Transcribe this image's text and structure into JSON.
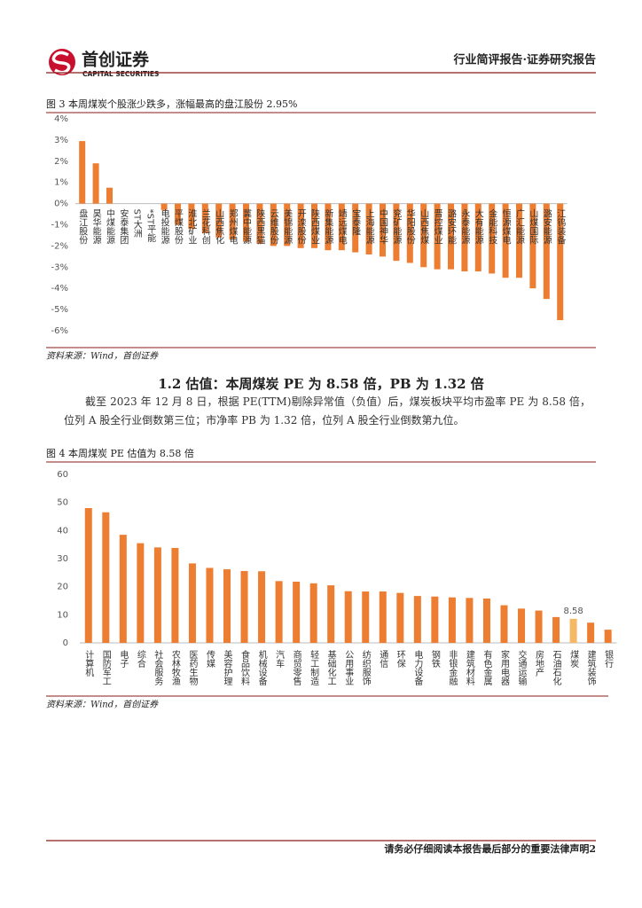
{
  "header": {
    "logo": "首创证券",
    "logo_en": "CAPITAL SECURITIES",
    "title": "行业简评报告·证券研究报告"
  },
  "figure3": {
    "caption": "图 3 本周煤炭个股涨少跌多，涨幅最高的盘江股份 2.95%",
    "source": "资料来源：Wind，首创证券"
  },
  "section": {
    "heading": "1.2 估值：本周煤炭 PE 为 8.58 倍，PB 为 1.32 倍",
    "paragraph": "截至 2023 年 12 月 8 日，根据 PE(TTM)剔除异常值（负值）后，煤炭板块平均市盈率 PE 为 8.58 倍，位列 A 股全行业倒数第三位；市净率 PB 为 1.32 倍，位列 A 股全行业倒数第九位。"
  },
  "figure4": {
    "caption": "图 4 本周煤炭 PE 估值为 8.58 倍",
    "source": "资料来源：Wind，首创证券"
  },
  "footer": "请务必仔细阅读本报告最后部分的重要法律声明2",
  "chart_data": [
    {
      "type": "bar",
      "color": "#ed7d31",
      "categories": [
        "盘江股份",
        "昊华能源",
        "中煤能源",
        "安泰集团",
        "ST大洲",
        "*ST平能",
        "电投能源",
        "平煤股份",
        "淮北矿业",
        "兰花科创",
        "山西焦化",
        "郑州煤电",
        "冀中能源",
        "陕西黑猫",
        "云维股份",
        "美锦能源",
        "开滦股份",
        "陕西煤业",
        "新集能源",
        "靖远煤电",
        "宝泰隆",
        "上海能源",
        "中国神华",
        "兖矿能源",
        "华阳股份",
        "山西焦煤",
        "晋控煤业",
        "潞安环能",
        "永泰能源",
        "大有能源",
        "金能科技",
        "恒源煤电",
        "广汇能源",
        "山煤国际",
        "潞安能源",
        "江钨装备"
      ],
      "values": [
        2.95,
        1.9,
        0.75,
        0,
        0,
        0,
        -0.3,
        -1.0,
        -1.2,
        -1.4,
        -1.6,
        -1.7,
        -1.8,
        -1.9,
        -2.0,
        -2.0,
        -2.1,
        -2.1,
        -2.2,
        -2.2,
        -2.3,
        -2.4,
        -2.5,
        -2.7,
        -2.8,
        -3.0,
        -3.1,
        -3.1,
        -3.2,
        -3.2,
        -3.3,
        -3.5,
        -3.5,
        -4.0,
        -4.5,
        -5.5
      ],
      "ylim": [
        -6,
        4
      ],
      "yticks": [
        {
          "value": 4,
          "label": "4%"
        },
        {
          "value": 3,
          "label": "3%"
        },
        {
          "value": 2,
          "label": "2%"
        },
        {
          "value": 1,
          "label": "1%"
        },
        {
          "value": 0,
          "label": "0%"
        },
        {
          "value": -1,
          "label": "-1%"
        },
        {
          "value": -2,
          "label": "-2%"
        },
        {
          "value": -3,
          "label": "-3%"
        },
        {
          "value": -4,
          "label": "-4%"
        },
        {
          "value": -5,
          "label": "-5%"
        },
        {
          "value": -6,
          "label": "-6%"
        }
      ],
      "grid": false
    },
    {
      "type": "bar",
      "categories": [
        "计算机",
        "国防军工",
        "电子",
        "综合",
        "社会服务",
        "农林牧渔",
        "医药生物",
        "传媒",
        "美容护理",
        "食品饮料",
        "机械设备",
        "汽车",
        "商贸零售",
        "轻工制造",
        "基础化工",
        "公用事业",
        "纺织服饰",
        "通信",
        "环保",
        "电力设备",
        "钢铁",
        "非银金融",
        "建筑材料",
        "有色金属",
        "家用电器",
        "交通运输",
        "房地产",
        "石油石化",
        "煤炭",
        "建筑装饰",
        "银行"
      ],
      "values": [
        48,
        46.5,
        38.5,
        35.5,
        34,
        33.8,
        28.3,
        26.7,
        26.2,
        25.6,
        25.5,
        22,
        21.8,
        21.2,
        20.5,
        18.4,
        18.3,
        18.3,
        17.8,
        16.7,
        16.5,
        16.2,
        16,
        15.8,
        13.4,
        12.2,
        11.5,
        9.2,
        8.58,
        7.2,
        4.7
      ],
      "value_labels": [
        null,
        null,
        null,
        null,
        null,
        null,
        null,
        null,
        null,
        null,
        null,
        null,
        null,
        null,
        null,
        null,
        null,
        null,
        null,
        null,
        null,
        null,
        null,
        null,
        null,
        null,
        null,
        null,
        "8.58",
        null,
        null
      ],
      "colors": [
        "#ed7d31",
        "#ed7d31",
        "#ed7d31",
        "#ed7d31",
        "#ed7d31",
        "#ed7d31",
        "#ed7d31",
        "#ed7d31",
        "#ed7d31",
        "#ed7d31",
        "#ed7d31",
        "#ed7d31",
        "#ed7d31",
        "#ed7d31",
        "#ed7d31",
        "#ed7d31",
        "#ed7d31",
        "#ed7d31",
        "#ed7d31",
        "#ed7d31",
        "#ed7d31",
        "#ed7d31",
        "#ed7d31",
        "#ed7d31",
        "#ed7d31",
        "#ed7d31",
        "#ed7d31",
        "#ed7d31",
        "#f5b865",
        "#ed7d31",
        "#ed7d31"
      ],
      "ylim": [
        0,
        60
      ],
      "yticks": [
        0,
        10,
        20,
        30,
        40,
        50,
        60
      ],
      "grid": false
    }
  ]
}
